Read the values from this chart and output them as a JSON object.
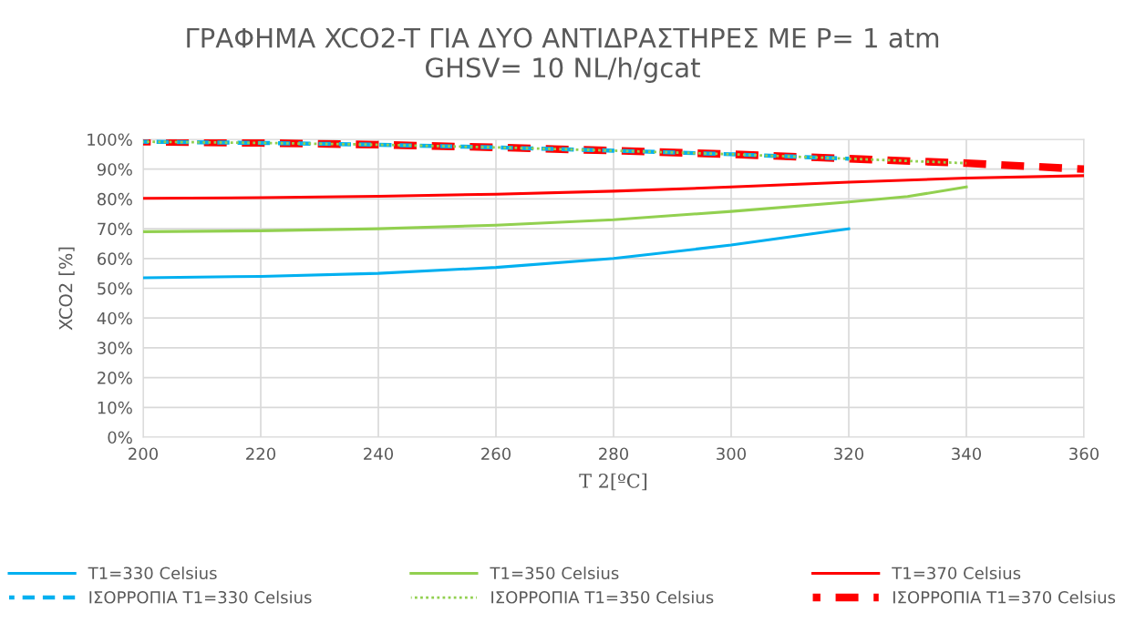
{
  "chart_data": {
    "type": "line",
    "title": "ΓΡΑΦΗΜΑ XCO2-T ΓΙΑ ΔΥΟ ΑΝΤΙΔΡΑΣΤΗΡΕΣ ΜΕ P= 1 atm\nGHSV= 10 NL/h/gcat",
    "xlabel": "T 2[ºC]",
    "ylabel": "XCO2 [%]",
    "xlim": [
      200,
      360
    ],
    "xticks": [
      200,
      220,
      240,
      260,
      280,
      300,
      320,
      340,
      360
    ],
    "ylim": [
      0,
      100
    ],
    "yticks": [
      {
        "value": 0,
        "label": "0%"
      },
      {
        "value": 10,
        "label": "10%"
      },
      {
        "value": 20,
        "label": "20%"
      },
      {
        "value": 30,
        "label": "30%"
      },
      {
        "value": 40,
        "label": "40%"
      },
      {
        "value": 50,
        "label": "50%"
      },
      {
        "value": 60,
        "label": "60%"
      },
      {
        "value": 70,
        "label": "70%"
      },
      {
        "value": 80,
        "label": "80%"
      },
      {
        "value": 90,
        "label": "90%"
      },
      {
        "value": 100,
        "label": "100%"
      }
    ],
    "grid": true,
    "legend": "bottom",
    "marker": "none",
    "series": [
      {
        "name": "T1=330 Celsius",
        "color": "#00b0f0",
        "line_style": "solid",
        "x": [
          200,
          220,
          240,
          260,
          280,
          300,
          320
        ],
        "values": [
          53.5,
          54,
          55,
          57,
          60,
          64.5,
          70
        ]
      },
      {
        "name": "T1=350 Celsius",
        "color": "#92d050",
        "line_style": "solid",
        "x": [
          200,
          220,
          240,
          260,
          280,
          300,
          320,
          330,
          340
        ],
        "values": [
          69,
          69.3,
          70,
          71.2,
          73,
          75.8,
          79,
          80.8,
          84
        ]
      },
      {
        "name": "T1=370 Celsius",
        "color": "#ff0000",
        "line_style": "solid",
        "x": [
          200,
          220,
          240,
          260,
          280,
          300,
          320,
          340,
          360
        ],
        "values": [
          80.2,
          80.4,
          80.9,
          81.6,
          82.6,
          84,
          85.6,
          87,
          87.8
        ]
      },
      {
        "name": "ΙΣΟΡΡΟΠΙΑ T1=330 Celsius",
        "color": "#00b0f0",
        "line_style": "dashed",
        "x": [
          200,
          220,
          240,
          260,
          280,
          300,
          320
        ],
        "values": [
          99.2,
          98.8,
          98.2,
          97.3,
          96.2,
          95,
          93.5
        ]
      },
      {
        "name": "ΙΣΟΡΡΟΠΙΑ T1=350 Celsius",
        "color": "#92d050",
        "line_style": "dotted",
        "x": [
          200,
          220,
          240,
          260,
          280,
          300,
          320,
          340
        ],
        "values": [
          99.2,
          98.8,
          98.2,
          97.3,
          96.2,
          95,
          93.5,
          92
        ]
      },
      {
        "name": "ΙΣΟΡΡΟΠΙΑ T1=370 Celsius",
        "color": "#ff0000",
        "line_style": "dashed",
        "x": [
          200,
          220,
          240,
          260,
          280,
          300,
          320,
          340,
          360
        ],
        "values": [
          99.2,
          98.8,
          98.2,
          97.3,
          96.2,
          95,
          93.5,
          92,
          90
        ]
      }
    ]
  }
}
